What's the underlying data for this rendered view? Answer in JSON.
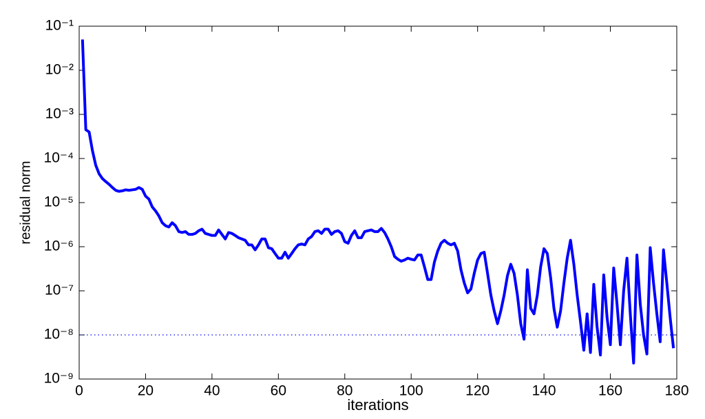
{
  "chart_data": {
    "type": "line",
    "xlabel": "iterations",
    "ylabel": "residual norm",
    "color": "#0000ff",
    "log_y": true,
    "threshold": 1e-08,
    "threshold_color": "#0000ff",
    "xlim": [
      0,
      180
    ],
    "xticks": [
      0,
      20,
      40,
      60,
      80,
      100,
      120,
      140,
      160,
      180
    ],
    "ylim": [
      1e-09,
      0.1
    ],
    "yticks": [
      {
        "value": 1e-09,
        "label": "10⁻⁹"
      },
      {
        "value": 1e-08,
        "label": "10⁻⁸"
      },
      {
        "value": 1e-07,
        "label": "10⁻⁷"
      },
      {
        "value": 1e-06,
        "label": "10⁻⁶"
      },
      {
        "value": 1e-05,
        "label": "10⁻⁵"
      },
      {
        "value": 0.0001,
        "label": "10⁻⁴"
      },
      {
        "value": 0.001,
        "label": "10⁻³"
      },
      {
        "value": 0.01,
        "label": "10⁻²"
      },
      {
        "value": 0.1,
        "label": "10⁻¹"
      }
    ],
    "x": [
      1,
      2,
      3,
      4,
      5,
      6,
      7,
      8,
      9,
      10,
      11,
      12,
      13,
      14,
      15,
      16,
      17,
      18,
      19,
      20,
      21,
      22,
      23,
      24,
      25,
      26,
      27,
      28,
      29,
      30,
      31,
      32,
      33,
      34,
      35,
      36,
      37,
      38,
      39,
      40,
      41,
      42,
      43,
      44,
      45,
      46,
      47,
      48,
      49,
      50,
      51,
      52,
      53,
      54,
      55,
      56,
      57,
      58,
      59,
      60,
      61,
      62,
      63,
      64,
      65,
      66,
      67,
      68,
      69,
      70,
      71,
      72,
      73,
      74,
      75,
      76,
      77,
      78,
      79,
      80,
      81,
      82,
      83,
      84,
      85,
      86,
      87,
      88,
      89,
      90,
      91,
      92,
      93,
      94,
      95,
      96,
      97,
      98,
      99,
      100,
      101,
      102,
      103,
      104,
      105,
      106,
      107,
      108,
      109,
      110,
      111,
      112,
      113,
      114,
      115,
      116,
      117,
      118,
      119,
      120,
      121,
      122,
      123,
      124,
      125,
      126,
      127,
      128,
      129,
      130,
      131,
      132,
      133,
      134,
      135,
      136,
      137,
      138,
      139,
      140,
      141,
      142,
      143,
      144,
      145,
      146,
      147,
      148,
      149,
      150,
      151,
      152,
      153,
      154,
      155,
      156,
      157,
      158,
      159,
      160,
      161,
      162,
      163,
      164,
      165,
      166,
      167,
      168,
      169,
      170,
      171,
      172,
      173,
      174,
      175,
      176,
      177,
      178,
      179
    ],
    "values": [
      0.05,
      0.00045,
      0.0004,
      0.00015,
      7e-05,
      4.5e-05,
      3.5e-05,
      3e-05,
      2.6e-05,
      2.2e-05,
      1.9e-05,
      1.8e-05,
      1.85e-05,
      1.95e-05,
      1.9e-05,
      1.95e-05,
      2e-05,
      2.2e-05,
      2e-05,
      1.4e-05,
      1.2e-05,
      8e-06,
      6.5e-06,
      5e-06,
      3.5e-06,
      3e-06,
      2.8e-06,
      3.5e-06,
      3e-06,
      2.2e-06,
      2.1e-06,
      2.2e-06,
      1.9e-06,
      1.9e-06,
      2e-06,
      2.3e-06,
      2.5e-06,
      2e-06,
      1.9e-06,
      1.8e-06,
      1.8e-06,
      2.4e-06,
      1.9e-06,
      1.5e-06,
      2.1e-06,
      2e-06,
      1.8e-06,
      1.6e-06,
      1.5e-06,
      1.4e-06,
      1.1e-06,
      1.1e-06,
      8.5e-07,
      1.1e-06,
      1.5e-06,
      1.5e-06,
      9.5e-07,
      9e-07,
      7e-07,
      5.5e-07,
      5.5e-07,
      7.5e-07,
      5.5e-07,
      7e-07,
      9e-07,
      1.1e-06,
      1.15e-06,
      1.1e-06,
      1.5e-06,
      1.7e-06,
      2.2e-06,
      2.3e-06,
      2e-06,
      2.5e-06,
      2.5e-06,
      1.9e-06,
      2.2e-06,
      2.3e-06,
      2e-06,
      1.3e-06,
      1.2e-06,
      1.8e-06,
      2.3e-06,
      1.6e-06,
      1.6e-06,
      2.2e-06,
      2.3e-06,
      2.4e-06,
      2.2e-06,
      2.2e-06,
      2.6e-06,
      2.1e-06,
      1.5e-06,
      1e-06,
      6e-07,
      5.2e-07,
      4.7e-07,
      5e-07,
      5.5e-07,
      5.2e-07,
      5e-07,
      6.5e-07,
      6.5e-07,
      3.5e-07,
      1.8e-07,
      1.8e-07,
      4.5e-07,
      8e-07,
      1.2e-06,
      1.4e-06,
      1.2e-06,
      1.1e-06,
      1.2e-06,
      8e-07,
      3e-07,
      1.5e-07,
      9e-08,
      1.1e-07,
      2.5e-07,
      5e-07,
      7e-07,
      7.5e-07,
      2.5e-07,
      8e-08,
      3.5e-08,
      1.8e-08,
      3.5e-08,
      8e-08,
      2.2e-07,
      4e-07,
      2.5e-07,
      8e-08,
      1.8e-08,
      8e-09,
      3e-07,
      4e-08,
      3e-08,
      8e-08,
      3.5e-07,
      9e-07,
      7e-07,
      2e-07,
      4e-08,
      1.5e-08,
      3.5e-08,
      1.5e-07,
      5.5e-07,
      1.4e-06,
      4e-07,
      8e-08,
      2e-08,
      4.5e-09,
      3e-08,
      4e-09,
      1.4e-07,
      1.5e-08,
      3.5e-09,
      2.3e-07,
      2.5e-08,
      6e-09,
      3.3e-07,
      5e-08,
      6e-09,
      1e-07,
      5.5e-07,
      3e-08,
      2.3e-09,
      6.5e-07,
      5e-08,
      1e-08,
      3.7e-09,
      9.5e-07,
      1.5e-07,
      3e-08,
      7e-09,
      8.5e-07,
      1.5e-07,
      2.5e-08,
      5e-09
    ]
  }
}
